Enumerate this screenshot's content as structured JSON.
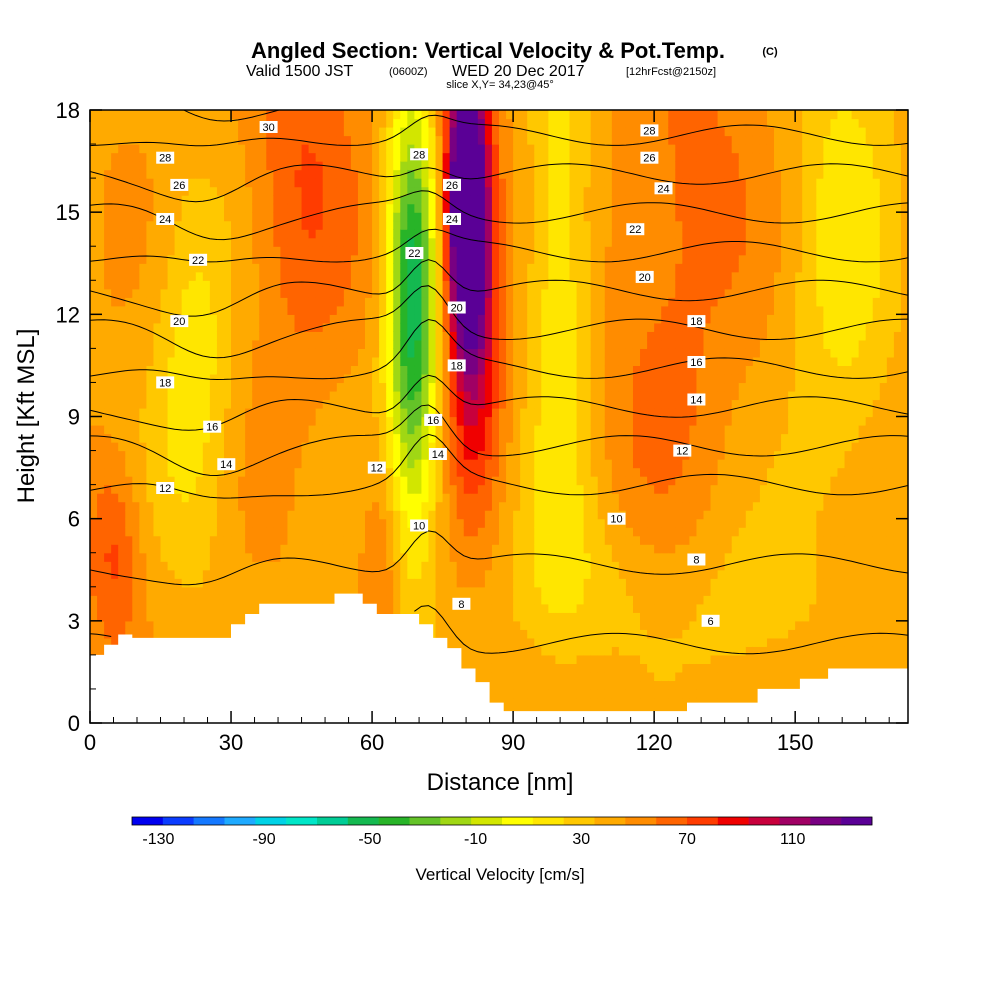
{
  "title": {
    "main": "Angled Section: Vertical Velocity & Pot.Temp.",
    "unit": "(C)",
    "valid_line_a": "Valid 1500 JST",
    "valid_line_b": "(0600Z)",
    "valid_line_c": "WED 20 Dec 2017",
    "valid_line_d": "[12hrFcst@2150z]",
    "slice": "slice X,Y= 34,23@45°"
  },
  "colors": {
    "terrain": "#ffffff",
    "contour": "#000000",
    "palette": [
      "#0000f0",
      "#0a3cff",
      "#1478ff",
      "#1eaaff",
      "#00d2e6",
      "#00e6c8",
      "#00cd96",
      "#14b950",
      "#28b428",
      "#64c328",
      "#a0d714",
      "#d2e600",
      "#ffff00",
      "#ffe600",
      "#ffc800",
      "#ffaa00",
      "#ff8c00",
      "#ff6400",
      "#ff3c00",
      "#f00000",
      "#c8003c",
      "#a00064",
      "#780082",
      "#5a0096"
    ]
  },
  "chart_data": {
    "type": "heatmap",
    "xlabel": "Distance [nm]",
    "ylabel": "Height [Kft MSL]",
    "xlim": [
      0,
      174
    ],
    "ylim": [
      0,
      18
    ],
    "x_ticks": [
      0,
      30,
      60,
      90,
      120,
      150
    ],
    "y_ticks": [
      0,
      3,
      6,
      9,
      12,
      15,
      18
    ],
    "x_tick_labels": [
      "0",
      "30",
      "60",
      "90",
      "120",
      "150"
    ],
    "y_tick_labels": [
      "0",
      "3",
      "6",
      "9",
      "12",
      "15",
      "18"
    ],
    "colorbar": {
      "title": "Vertical Velocity [cm/s]",
      "vmin": -140,
      "vmax": 140,
      "step": 10,
      "tick_values": [
        -130,
        -90,
        -50,
        -10,
        30,
        70,
        110
      ],
      "tick_labels": [
        "-130",
        "-90",
        "-50",
        "-10",
        "30",
        "70",
        "110"
      ]
    },
    "terrain": [
      [
        0,
        2.0
      ],
      [
        3,
        2.0
      ],
      [
        3,
        2.3
      ],
      [
        6,
        2.3
      ],
      [
        6,
        2.6
      ],
      [
        9,
        2.6
      ],
      [
        9,
        2.5
      ],
      [
        30,
        2.5
      ],
      [
        30,
        2.9
      ],
      [
        33,
        2.9
      ],
      [
        33,
        3.2
      ],
      [
        36,
        3.2
      ],
      [
        36,
        3.5
      ],
      [
        52,
        3.5
      ],
      [
        52,
        3.8
      ],
      [
        58,
        3.8
      ],
      [
        58,
        3.5
      ],
      [
        61,
        3.5
      ],
      [
        61,
        3.2
      ],
      [
        70,
        3.2
      ],
      [
        70,
        2.9
      ],
      [
        73,
        2.9
      ],
      [
        73,
        2.5
      ],
      [
        76,
        2.5
      ],
      [
        76,
        2.2
      ],
      [
        79,
        2.2
      ],
      [
        79,
        1.6
      ],
      [
        82,
        1.6
      ],
      [
        82,
        1.2
      ],
      [
        85,
        1.2
      ],
      [
        85,
        0.6
      ],
      [
        88,
        0.6
      ],
      [
        88,
        0.35
      ],
      [
        127,
        0.35
      ],
      [
        127,
        0.6
      ],
      [
        142,
        0.6
      ],
      [
        142,
        1.0
      ],
      [
        151,
        1.0
      ],
      [
        151,
        1.3
      ],
      [
        157,
        1.3
      ],
      [
        157,
        1.6
      ],
      [
        174,
        1.6
      ]
    ],
    "vertical_velocity_features": [
      {
        "x": 69,
        "y": 11,
        "sx": 4,
        "sy": 4.5,
        "value": -55
      },
      {
        "x": 68,
        "y": 14,
        "sx": 3.5,
        "sy": 4,
        "value": -35
      },
      {
        "x": 80,
        "y": 15.5,
        "sx": 3,
        "sy": 3,
        "value": 110
      },
      {
        "x": 82,
        "y": 12,
        "sx": 4,
        "sy": 4,
        "value": 45
      },
      {
        "x": 100,
        "y": 13,
        "sx": 5,
        "sy": 6,
        "value": -28
      },
      {
        "x": 22,
        "y": 10,
        "sx": 6,
        "sy": 4,
        "value": -25
      },
      {
        "x": 160,
        "y": 14,
        "sx": 8,
        "sy": 6,
        "value": -22
      },
      {
        "x": 5,
        "y": 5,
        "sx": 4,
        "sy": 2,
        "value": 25
      },
      {
        "x": 45,
        "y": 16,
        "sx": 8,
        "sy": 4,
        "value": 22
      },
      {
        "x": 62,
        "y": 5,
        "sx": 3,
        "sy": 2,
        "value": 15
      },
      {
        "x": 105,
        "y": 4,
        "sx": 15,
        "sy": 2,
        "value": -14
      },
      {
        "x": 140,
        "y": 3,
        "sx": 10,
        "sy": 2,
        "value": -12
      },
      {
        "x": 128,
        "y": 16,
        "sx": 10,
        "sy": 4,
        "value": 15
      },
      {
        "x": 120,
        "y": 9,
        "sx": 10,
        "sy": 4,
        "value": 10
      }
    ],
    "contours": {
      "levels": [
        6,
        8,
        10,
        12,
        14,
        16,
        18,
        20,
        22,
        24,
        26,
        28,
        30,
        32
      ],
      "labels": [
        {
          "x": 38,
          "y": 17.5,
          "text": "30"
        },
        {
          "x": 16,
          "y": 16.6,
          "text": "28"
        },
        {
          "x": 19,
          "y": 15.8,
          "text": "26"
        },
        {
          "x": 16,
          "y": 14.8,
          "text": "24"
        },
        {
          "x": 23,
          "y": 13.6,
          "text": "22"
        },
        {
          "x": 19,
          "y": 11.8,
          "text": "20"
        },
        {
          "x": 16,
          "y": 10.0,
          "text": "18"
        },
        {
          "x": 26,
          "y": 8.7,
          "text": "16"
        },
        {
          "x": 29,
          "y": 7.6,
          "text": "14"
        },
        {
          "x": 16,
          "y": 6.9,
          "text": "12"
        },
        {
          "x": 70,
          "y": 16.7,
          "text": "28"
        },
        {
          "x": 77,
          "y": 15.8,
          "text": "26"
        },
        {
          "x": 77,
          "y": 14.8,
          "text": "24"
        },
        {
          "x": 69,
          "y": 13.8,
          "text": "22"
        },
        {
          "x": 78,
          "y": 12.2,
          "text": "20"
        },
        {
          "x": 78,
          "y": 10.5,
          "text": "18"
        },
        {
          "x": 73,
          "y": 8.9,
          "text": "16"
        },
        {
          "x": 74,
          "y": 7.9,
          "text": "14"
        },
        {
          "x": 61,
          "y": 7.5,
          "text": "12"
        },
        {
          "x": 70,
          "y": 5.8,
          "text": "10"
        },
        {
          "x": 79,
          "y": 3.5,
          "text": "8"
        },
        {
          "x": 119,
          "y": 17.4,
          "text": "28"
        },
        {
          "x": 119,
          "y": 16.6,
          "text": "26"
        },
        {
          "x": 122,
          "y": 15.7,
          "text": "24"
        },
        {
          "x": 116,
          "y": 14.5,
          "text": "22"
        },
        {
          "x": 118,
          "y": 13.1,
          "text": "20"
        },
        {
          "x": 129,
          "y": 11.8,
          "text": "18"
        },
        {
          "x": 129,
          "y": 10.6,
          "text": "16"
        },
        {
          "x": 129,
          "y": 9.5,
          "text": "14"
        },
        {
          "x": 126,
          "y": 8.0,
          "text": "12"
        },
        {
          "x": 112,
          "y": 6.0,
          "text": "10"
        },
        {
          "x": 129,
          "y": 4.8,
          "text": "8"
        },
        {
          "x": 132,
          "y": 3.0,
          "text": "6"
        }
      ]
    }
  }
}
